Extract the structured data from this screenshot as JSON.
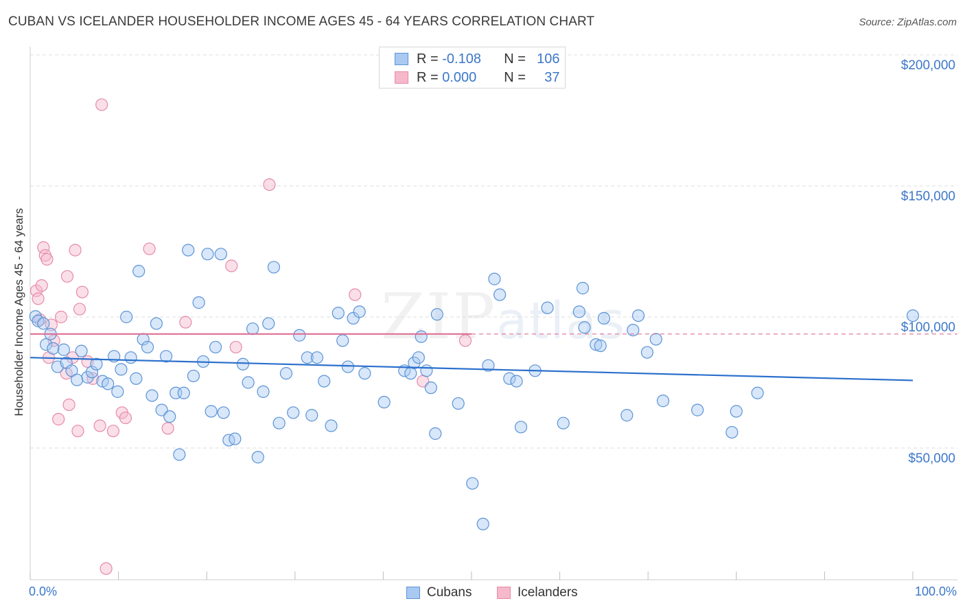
{
  "header": {
    "title": "CUBAN VS ICELANDER HOUSEHOLDER INCOME AGES 45 - 64 YEARS CORRELATION CHART",
    "source": "Source: ZipAtlas.com"
  },
  "watermark": {
    "zip": "ZIP",
    "atlas": "atlas"
  },
  "legend_top": {
    "rows": [
      {
        "r_label": "R =",
        "r_value": "-0.108",
        "n_label": "N =",
        "n_value": "106"
      },
      {
        "r_label": "R =",
        "r_value": "0.000",
        "n_label": "N =",
        "n_value": "37"
      }
    ]
  },
  "legend_bottom": {
    "cubans": "Cubans",
    "icelanders": "Icelanders"
  },
  "colors": {
    "cuban_fill": "#a9c9f2",
    "cuban_stroke": "#5b93d6",
    "cuban_line": "#2a6fcc",
    "iceland_fill": "#f6b8cb",
    "iceland_stroke": "#e58aa8",
    "iceland_line": "#e06f93",
    "axis_text": "#3b76c9",
    "grid": "#dddddd"
  },
  "chart_data": {
    "type": "scatter",
    "title": "CUBAN VS ICELANDER HOUSEHOLDER INCOME AGES 45 - 64 YEARS CORRELATION CHART",
    "xlabel": "",
    "ylabel": "Householder Income Ages 45 - 64 years",
    "xlim": [
      0,
      100
    ],
    "ylim": [
      0,
      200000
    ],
    "x_tick_labels": [
      "0.0%",
      "100.0%"
    ],
    "y_ticks": [
      50000,
      100000,
      150000,
      200000
    ],
    "y_tick_labels": [
      "$50,000",
      "$100,000",
      "$150,000",
      "$200,000"
    ],
    "grid": true,
    "legend_position": "top-center",
    "series": [
      {
        "name": "Cubans",
        "r": -0.108,
        "n": 106,
        "trend": {
          "x": [
            0,
            100
          ],
          "y": [
            84500,
            75800
          ]
        },
        "points": [
          [
            0.6,
            100200
          ],
          [
            0.9,
            98500
          ],
          [
            1.5,
            97500
          ],
          [
            1.8,
            89500
          ],
          [
            2.3,
            93500
          ],
          [
            2.6,
            88000
          ],
          [
            3.1,
            81000
          ],
          [
            3.8,
            87500
          ],
          [
            4.1,
            82500
          ],
          [
            4.7,
            79500
          ],
          [
            5.3,
            76000
          ],
          [
            5.8,
            87000
          ],
          [
            6.5,
            77000
          ],
          [
            7.0,
            79000
          ],
          [
            7.5,
            82000
          ],
          [
            8.2,
            75500
          ],
          [
            8.8,
            74500
          ],
          [
            9.5,
            85000
          ],
          [
            9.9,
            71500
          ],
          [
            10.3,
            80000
          ],
          [
            10.9,
            100000
          ],
          [
            11.4,
            84500
          ],
          [
            12.0,
            76500
          ],
          [
            12.3,
            117500
          ],
          [
            12.8,
            91500
          ],
          [
            13.3,
            88500
          ],
          [
            13.8,
            70000
          ],
          [
            14.3,
            97500
          ],
          [
            14.9,
            64500
          ],
          [
            15.4,
            85000
          ],
          [
            15.8,
            62000
          ],
          [
            16.5,
            71000
          ],
          [
            16.9,
            47500
          ],
          [
            17.4,
            71000
          ],
          [
            17.9,
            125500
          ],
          [
            18.5,
            77500
          ],
          [
            19.1,
            105500
          ],
          [
            19.6,
            83000
          ],
          [
            20.1,
            124000
          ],
          [
            20.5,
            64000
          ],
          [
            21.0,
            88500
          ],
          [
            21.6,
            124000
          ],
          [
            21.9,
            63500
          ],
          [
            22.5,
            53000
          ],
          [
            23.2,
            53500
          ],
          [
            24.1,
            82000
          ],
          [
            24.7,
            75000
          ],
          [
            25.2,
            95500
          ],
          [
            25.8,
            46500
          ],
          [
            26.4,
            71500
          ],
          [
            27.0,
            97500
          ],
          [
            27.6,
            119000
          ],
          [
            28.2,
            59500
          ],
          [
            29.0,
            78500
          ],
          [
            29.8,
            63500
          ],
          [
            30.5,
            93000
          ],
          [
            31.4,
            84500
          ],
          [
            31.9,
            62500
          ],
          [
            32.5,
            84500
          ],
          [
            33.3,
            75500
          ],
          [
            34.1,
            58500
          ],
          [
            34.9,
            101500
          ],
          [
            35.4,
            91000
          ],
          [
            36.0,
            81000
          ],
          [
            36.6,
            99500
          ],
          [
            37.3,
            102000
          ],
          [
            37.9,
            78500
          ],
          [
            40.1,
            67500
          ],
          [
            42.4,
            79500
          ],
          [
            43.1,
            78500
          ],
          [
            43.5,
            82500
          ],
          [
            44.0,
            84500
          ],
          [
            44.3,
            92500
          ],
          [
            44.9,
            79500
          ],
          [
            45.4,
            73000
          ],
          [
            45.9,
            55500
          ],
          [
            46.1,
            101000
          ],
          [
            48.5,
            67000
          ],
          [
            50.1,
            36500
          ],
          [
            51.3,
            21000
          ],
          [
            51.9,
            81500
          ],
          [
            52.6,
            114500
          ],
          [
            53.2,
            108500
          ],
          [
            54.3,
            76500
          ],
          [
            55.1,
            75500
          ],
          [
            55.6,
            58000
          ],
          [
            57.2,
            79500
          ],
          [
            58.6,
            103500
          ],
          [
            60.4,
            59500
          ],
          [
            62.2,
            102000
          ],
          [
            62.6,
            111000
          ],
          [
            62.8,
            96000
          ],
          [
            64.1,
            89500
          ],
          [
            64.6,
            89000
          ],
          [
            65.0,
            99500
          ],
          [
            67.6,
            62500
          ],
          [
            68.3,
            95000
          ],
          [
            68.9,
            100500
          ],
          [
            69.9,
            86500
          ],
          [
            70.9,
            91500
          ],
          [
            71.7,
            68000
          ],
          [
            75.6,
            64500
          ],
          [
            79.5,
            56000
          ],
          [
            80.0,
            64000
          ],
          [
            82.4,
            71000
          ],
          [
            100.0,
            100500
          ]
        ]
      },
      {
        "name": "Icelanders",
        "r": 0.0,
        "n": 37,
        "trend": {
          "x": [
            0,
            50
          ],
          "y": [
            93500,
            93500
          ]
        },
        "points": [
          [
            0.7,
            110000
          ],
          [
            0.9,
            107000
          ],
          [
            1.1,
            99000
          ],
          [
            1.3,
            112000
          ],
          [
            1.5,
            126500
          ],
          [
            1.7,
            123500
          ],
          [
            1.9,
            122000
          ],
          [
            2.1,
            84500
          ],
          [
            2.4,
            97000
          ],
          [
            2.7,
            91000
          ],
          [
            3.2,
            61000
          ],
          [
            3.5,
            100000
          ],
          [
            4.1,
            78500
          ],
          [
            4.2,
            115500
          ],
          [
            4.4,
            66500
          ],
          [
            4.8,
            84500
          ],
          [
            5.1,
            125500
          ],
          [
            5.4,
            56500
          ],
          [
            5.6,
            103000
          ],
          [
            5.9,
            109500
          ],
          [
            6.5,
            83000
          ],
          [
            7.1,
            76500
          ],
          [
            7.9,
            58500
          ],
          [
            8.1,
            181000
          ],
          [
            8.6,
            4000
          ],
          [
            9.4,
            56500
          ],
          [
            10.4,
            63500
          ],
          [
            10.8,
            61500
          ],
          [
            13.5,
            126000
          ],
          [
            15.6,
            57500
          ],
          [
            17.6,
            98000
          ],
          [
            22.8,
            119500
          ],
          [
            23.3,
            88500
          ],
          [
            27.1,
            150500
          ],
          [
            36.8,
            108500
          ],
          [
            44.5,
            75500
          ],
          [
            49.3,
            91000
          ]
        ]
      }
    ]
  }
}
